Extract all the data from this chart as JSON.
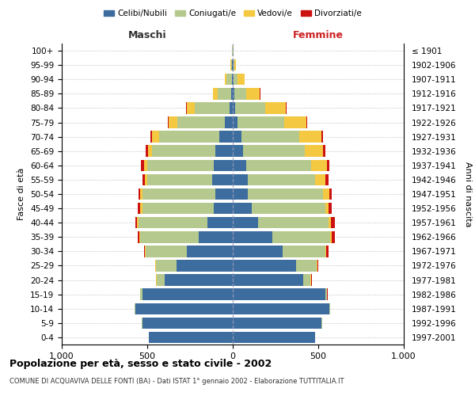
{
  "age_groups": [
    "0-4",
    "5-9",
    "10-14",
    "15-19",
    "20-24",
    "25-29",
    "30-34",
    "35-39",
    "40-44",
    "45-49",
    "50-54",
    "55-59",
    "60-64",
    "65-69",
    "70-74",
    "75-79",
    "80-84",
    "85-89",
    "90-94",
    "95-99",
    "100+"
  ],
  "birth_years": [
    "1997-2001",
    "1992-1996",
    "1987-1991",
    "1982-1986",
    "1977-1981",
    "1972-1976",
    "1967-1971",
    "1962-1966",
    "1957-1961",
    "1952-1956",
    "1947-1951",
    "1942-1946",
    "1937-1941",
    "1932-1936",
    "1927-1931",
    "1922-1926",
    "1917-1921",
    "1912-1916",
    "1907-1911",
    "1902-1906",
    "≤ 1901"
  ],
  "maschi": {
    "celibi": [
      490,
      530,
      570,
      530,
      400,
      330,
      270,
      200,
      150,
      110,
      100,
      120,
      110,
      100,
      80,
      45,
      20,
      10,
      5,
      3,
      2
    ],
    "coniugati": [
      2,
      2,
      5,
      10,
      45,
      120,
      240,
      340,
      400,
      420,
      430,
      380,
      390,
      370,
      350,
      280,
      200,
      80,
      30,
      5,
      2
    ],
    "vedovi": [
      0,
      0,
      0,
      1,
      2,
      3,
      5,
      5,
      8,
      10,
      10,
      15,
      20,
      25,
      40,
      50,
      50,
      25,
      10,
      5,
      2
    ],
    "divorziati": [
      0,
      0,
      0,
      1,
      2,
      3,
      5,
      10,
      10,
      15,
      12,
      15,
      15,
      12,
      10,
      5,
      3,
      2,
      0,
      0,
      0
    ]
  },
  "femmine": {
    "nubili": [
      480,
      520,
      565,
      540,
      410,
      370,
      290,
      230,
      150,
      110,
      90,
      90,
      80,
      60,
      50,
      30,
      12,
      8,
      5,
      3,
      2
    ],
    "coniugate": [
      2,
      2,
      5,
      10,
      45,
      120,
      250,
      340,
      410,
      430,
      440,
      390,
      380,
      360,
      340,
      270,
      180,
      70,
      25,
      5,
      2
    ],
    "vedove": [
      0,
      0,
      1,
      2,
      3,
      5,
      8,
      10,
      15,
      20,
      35,
      60,
      90,
      110,
      130,
      130,
      120,
      80,
      40,
      10,
      2
    ],
    "divorziate": [
      0,
      0,
      0,
      2,
      3,
      5,
      10,
      15,
      20,
      20,
      15,
      20,
      15,
      12,
      10,
      5,
      4,
      2,
      1,
      0,
      0
    ]
  },
  "colors": {
    "celibi": "#3d6d9e",
    "coniugati": "#b5c98e",
    "vedovi": "#f5c842",
    "divorziati": "#cc1111"
  },
  "xlim": 1000,
  "title": "Popolazione per età, sesso e stato civile - 2002",
  "subtitle": "COMUNE DI ACQUAVIVA DELLE FONTI (BA) - Dati ISTAT 1° gennaio 2002 - Elaborazione TUTTITALIA.IT",
  "xlabel_left": "Maschi",
  "xlabel_right": "Femmine",
  "ylabel": "Fasce di età",
  "ylabel_right": "Anni di nascita",
  "bg_color": "#ffffff",
  "grid_color": "#cccccc"
}
